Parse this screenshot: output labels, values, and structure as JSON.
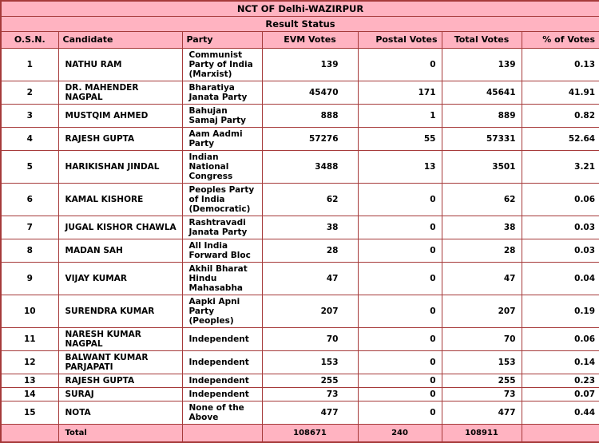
{
  "title": "NCT OF Delhi-WAZIRPUR",
  "subtitle": "Result Status",
  "columns": [
    "O.S.N.",
    "Candidate",
    "Party",
    "EVM Votes",
    "Postal Votes",
    "Total Votes",
    "% of Votes"
  ],
  "rows": [
    {
      "osn": "1",
      "candidate": "NATHU RAM",
      "party": "Communist Party of India (Marxist)",
      "evm": "139",
      "postal": "0",
      "total": "139",
      "pct": "0.13"
    },
    {
      "osn": "2",
      "candidate": "DR. MAHENDER NAGPAL",
      "party": "Bharatiya Janata Party",
      "evm": "45470",
      "postal": "171",
      "total": "45641",
      "pct": "41.91"
    },
    {
      "osn": "3",
      "candidate": "MUSTQIM AHMED",
      "party": "Bahujan Samaj Party",
      "evm": "888",
      "postal": "1",
      "total": "889",
      "pct": "0.82"
    },
    {
      "osn": "4",
      "candidate": "RAJESH GUPTA",
      "party": "Aam Aadmi Party",
      "evm": "57276",
      "postal": "55",
      "total": "57331",
      "pct": "52.64"
    },
    {
      "osn": "5",
      "candidate": "HARIKISHAN JINDAL",
      "party": "Indian National Congress",
      "evm": "3488",
      "postal": "13",
      "total": "3501",
      "pct": "3.21"
    },
    {
      "osn": "6",
      "candidate": "KAMAL KISHORE",
      "party": "Peoples Party of India (Democratic)",
      "evm": "62",
      "postal": "0",
      "total": "62",
      "pct": "0.06"
    },
    {
      "osn": "7",
      "candidate": "JUGAL KISHOR CHAWLA",
      "party": "Rashtravadi Janata Party",
      "evm": "38",
      "postal": "0",
      "total": "38",
      "pct": "0.03"
    },
    {
      "osn": "8",
      "candidate": "MADAN SAH",
      "party": "All India Forward Bloc",
      "evm": "28",
      "postal": "0",
      "total": "28",
      "pct": "0.03"
    },
    {
      "osn": "9",
      "candidate": "VIJAY KUMAR",
      "party": "Akhil Bharat Hindu Mahasabha",
      "evm": "47",
      "postal": "0",
      "total": "47",
      "pct": "0.04"
    },
    {
      "osn": "10",
      "candidate": "SURENDRA KUMAR",
      "party": "Aapki Apni Party (Peoples)",
      "evm": "207",
      "postal": "0",
      "total": "207",
      "pct": "0.19"
    },
    {
      "osn": "11",
      "candidate": "NARESH KUMAR NAGPAL",
      "party": "Independent",
      "evm": "70",
      "postal": "0",
      "total": "70",
      "pct": "0.06"
    },
    {
      "osn": "12",
      "candidate": "BALWANT KUMAR PARJAPATI",
      "party": "Independent",
      "evm": "153",
      "postal": "0",
      "total": "153",
      "pct": "0.14"
    },
    {
      "osn": "13",
      "candidate": "RAJESH GUPTA",
      "party": "Independent",
      "evm": "255",
      "postal": "0",
      "total": "255",
      "pct": "0.23"
    },
    {
      "osn": "14",
      "candidate": "SURAJ",
      "party": "Independent",
      "evm": "73",
      "postal": "0",
      "total": "73",
      "pct": "0.07"
    },
    {
      "osn": "15",
      "candidate": "NOTA",
      "party": "None of the Above",
      "evm": "477",
      "postal": "0",
      "total": "477",
      "pct": "0.44"
    }
  ],
  "totals": {
    "label": "Total",
    "evm": "108671",
    "postal": "240",
    "total": "108911"
  },
  "colors": {
    "header_pink": "#ffb3c1",
    "border": "#a63a3a",
    "row_bg": "#ffffff",
    "text": "#000000"
  }
}
